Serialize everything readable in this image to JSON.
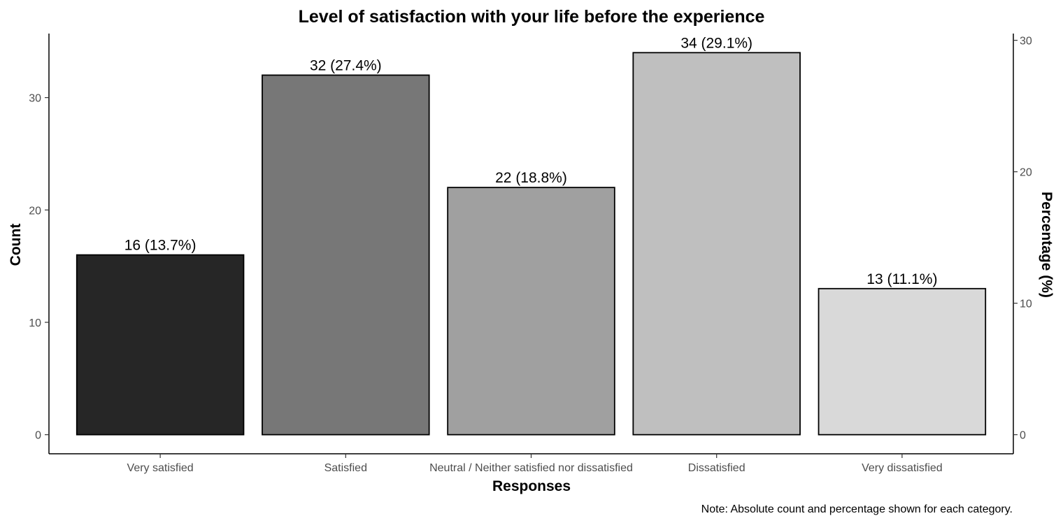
{
  "chart_data": {
    "type": "bar",
    "title": "Level of satisfaction with your life before the experience",
    "xlabel": "Responses",
    "ylabel": "Count",
    "y2label": "Percentage (%)",
    "caption": "Note: Absolute count and percentage shown for each category.",
    "categories": [
      "Very satisfied",
      "Satisfied",
      "Neutral / Neither satisfied nor dissatisfied",
      "Dissatisfied",
      "Very dissatisfied"
    ],
    "values": [
      16,
      32,
      22,
      34,
      13
    ],
    "data_labels": [
      "16 (13.7%)",
      "32 (27.4%)",
      "22 (18.8%)",
      "34 (29.1%)",
      "13 (11.1%)"
    ],
    "bar_colors": [
      "#262626",
      "#777777",
      "#a0a0a0",
      "#bfbfbf",
      "#d9d9d9"
    ],
    "ylim": [
      -1.7,
      35.7
    ],
    "yticks": [
      0,
      10,
      20,
      30
    ],
    "y2ticks": [
      0,
      10,
      20,
      30
    ],
    "y2_scale": 0.8547,
    "grid": false,
    "legend": "none"
  }
}
